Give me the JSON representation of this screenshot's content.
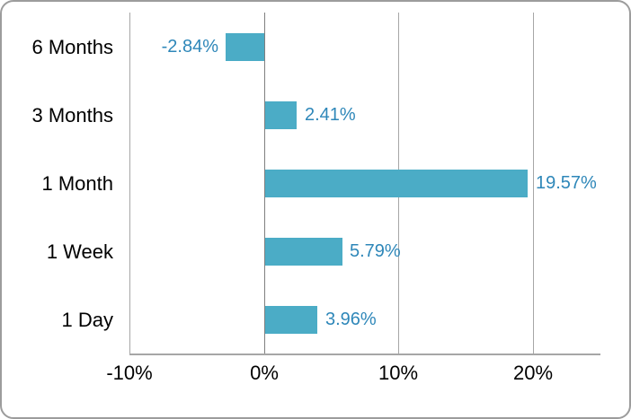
{
  "window": {
    "background": "#ffffff",
    "frame_border_color": "#9c9c9c"
  },
  "chart_data": {
    "type": "bar",
    "orientation": "horizontal",
    "title": "",
    "categories": [
      "6 Months",
      "3 Months",
      "1 Month",
      "1 Week",
      "1 Day"
    ],
    "values": [
      -2.84,
      2.41,
      19.57,
      5.79,
      3.96
    ],
    "data_labels": [
      "-2.84%",
      "2.41%",
      "19.57%",
      "5.79%",
      "3.96%"
    ],
    "x_ticks": [
      -10,
      0,
      10,
      20
    ],
    "x_tick_labels": [
      "-10%",
      "0%",
      "10%",
      "20%"
    ],
    "xlim": [
      -10,
      25
    ],
    "grid": "vertical-only",
    "legend": "none",
    "colors": {
      "bar": "#4BACC6",
      "data_label": "#2E87B9",
      "axis_text": "#000000",
      "gridline": "#A6A6A6",
      "zero_line": "#7F7F7F",
      "axis_line": "#A6A6A6"
    }
  }
}
